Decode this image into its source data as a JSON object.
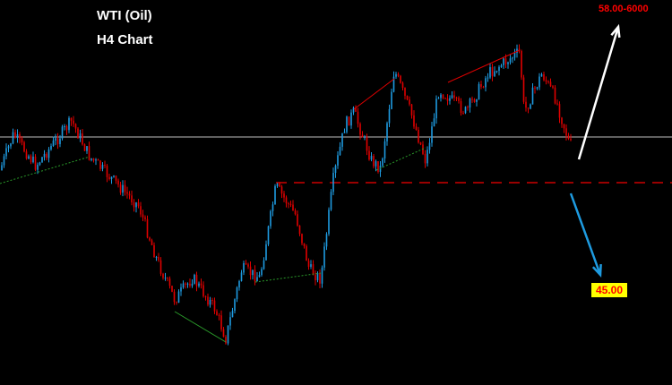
{
  "chart_data": {
    "type": "candlestick",
    "title": "WTI (Oil)",
    "subtitle": "H4 Chart",
    "annotations": [
      {
        "label": "58.00-6000",
        "direction": "up",
        "color": "#ff0000",
        "arrow_color": "#ffffff"
      },
      {
        "label": "45.00",
        "direction": "down",
        "color": "#ff0000",
        "background": "#ffff00",
        "arrow_color": "#1e9be0"
      }
    ],
    "lines": {
      "current_price": "#c0c0c0",
      "support_dashed": "#cc0000"
    },
    "colors": {
      "bull": "#1e9be0",
      "bear": "#e00000",
      "background": "#000000"
    },
    "grid": false
  }
}
